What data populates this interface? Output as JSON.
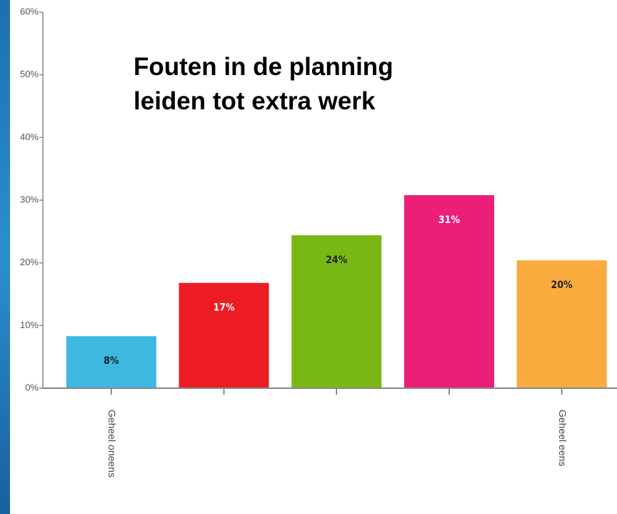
{
  "chart_data": {
    "type": "bar",
    "title": "Fouten in de planning leiden tot extra werk",
    "categories": [
      "Geheel oneens",
      null,
      null,
      null,
      "Geheel eens"
    ],
    "values": [
      8.3,
      16.8,
      24.4,
      30.8,
      20.4
    ],
    "value_labels": [
      "8%",
      "17%",
      "24%",
      "31%",
      "20%"
    ],
    "colors": [
      "#3db8e0",
      "#ed1c24",
      "#79b814",
      "#ec1f78",
      "#f9ac3d"
    ],
    "ylim": [
      0,
      60
    ],
    "yticks": [
      {
        "value": 0,
        "label": "0%"
      },
      {
        "value": 10,
        "label": "10%"
      },
      {
        "value": 20,
        "label": "20%"
      },
      {
        "value": 30,
        "label": "30%"
      },
      {
        "value": 40,
        "label": "40%"
      },
      {
        "value": 50,
        "label": "50%"
      },
      {
        "value": 60,
        "label": "60%"
      }
    ],
    "grid": false
  }
}
